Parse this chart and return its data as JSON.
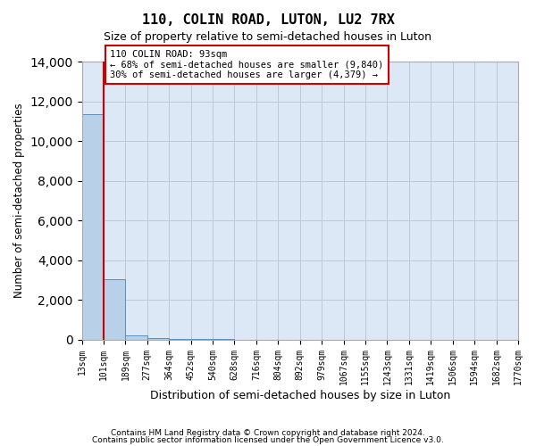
{
  "title": "110, COLIN ROAD, LUTON, LU2 7RX",
  "subtitle": "Size of property relative to semi-detached houses in Luton",
  "xlabel": "Distribution of semi-detached houses by size in Luton",
  "ylabel": "Number of semi-detached properties",
  "property_size": 93,
  "property_label": "110 COLIN ROAD: 93sqm",
  "pct_smaller": 68,
  "count_smaller": 9840,
  "pct_larger": 30,
  "count_larger": 4379,
  "annotation_line1": "110 COLIN ROAD: 93sqm",
  "annotation_line2": "← 68% of semi-detached houses are smaller (9,840)",
  "annotation_line3": "30% of semi-detached houses are larger (4,379) →",
  "bar_color": "#b8d0e8",
  "bar_edge_color": "#5a8fc0",
  "highlight_bar_color": "#b8d0e8",
  "red_line_color": "#cc0000",
  "annotation_box_color": "#cc0000",
  "grid_color": "#c0c8d8",
  "background_color": "#dce8f5",
  "tick_labels": [
    "13sqm",
    "101sqm",
    "189sqm",
    "277sqm",
    "364sqm",
    "452sqm",
    "540sqm",
    "628sqm",
    "716sqm",
    "804sqm",
    "892sqm",
    "979sqm",
    "1067sqm",
    "1155sqm",
    "1243sqm",
    "1331sqm",
    "1419sqm",
    "1506sqm",
    "1594sqm",
    "1682sqm",
    "1770sqm"
  ],
  "bar_values": [
    11350,
    3050,
    200,
    50,
    20,
    10,
    5,
    3,
    2,
    1,
    1,
    1,
    0,
    0,
    0,
    0,
    0,
    0,
    0,
    0
  ],
  "ylim": [
    0,
    14000
  ],
  "yticks": [
    0,
    2000,
    4000,
    6000,
    8000,
    10000,
    12000,
    14000
  ],
  "footer_line1": "Contains HM Land Registry data © Crown copyright and database right 2024.",
  "footer_line2": "Contains public sector information licensed under the Open Government Licence v3.0.",
  "red_line_x": 1,
  "num_bars": 20
}
